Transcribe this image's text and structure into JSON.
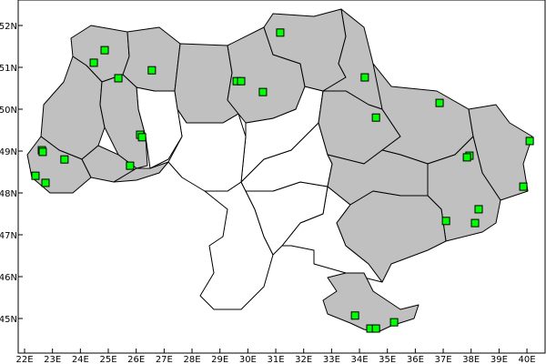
{
  "map": {
    "colors": {
      "shaded_region": "#c0c0c0",
      "unshaded_region": "#ffffff",
      "marker": "#00ff00",
      "border": "#000000"
    },
    "x_axis": {
      "ticks": [
        22,
        23,
        24,
        25,
        26,
        27,
        28,
        29,
        30,
        31,
        32,
        33,
        34,
        35,
        36,
        37,
        38,
        39,
        40
      ],
      "labels": [
        "22E",
        "23E",
        "24E",
        "25E",
        "26E",
        "27E",
        "28E",
        "29E",
        "30E",
        "31E",
        "32E",
        "33E",
        "34E",
        "35E",
        "36E",
        "37E",
        "38E",
        "39E",
        "40E"
      ]
    },
    "y_axis": {
      "ticks": [
        52,
        51,
        50,
        49,
        48,
        47,
        46,
        45
      ],
      "labels": [
        "52N",
        "51N",
        "50N",
        "49N",
        "48N",
        "47N",
        "46N",
        "45N"
      ]
    },
    "markers": [
      {
        "lon": 24.87,
        "lat": 51.41
      },
      {
        "lon": 24.48,
        "lat": 51.11
      },
      {
        "lon": 25.36,
        "lat": 50.74
      },
      {
        "lon": 26.56,
        "lat": 50.93
      },
      {
        "lon": 31.16,
        "lat": 51.83
      },
      {
        "lon": 29.6,
        "lat": 50.67
      },
      {
        "lon": 29.76,
        "lat": 50.67
      },
      {
        "lon": 30.54,
        "lat": 50.41
      },
      {
        "lon": 34.19,
        "lat": 50.76
      },
      {
        "lon": 34.59,
        "lat": 49.8
      },
      {
        "lon": 36.87,
        "lat": 50.15
      },
      {
        "lon": 26.14,
        "lat": 49.39
      },
      {
        "lon": 26.21,
        "lat": 49.33
      },
      {
        "lon": 22.62,
        "lat": 49.02
      },
      {
        "lon": 22.65,
        "lat": 48.98
      },
      {
        "lon": 23.43,
        "lat": 48.8
      },
      {
        "lon": 25.78,
        "lat": 48.65
      },
      {
        "lon": 22.39,
        "lat": 48.41
      },
      {
        "lon": 22.75,
        "lat": 48.24
      },
      {
        "lon": 37.94,
        "lat": 48.89
      },
      {
        "lon": 37.85,
        "lat": 48.85
      },
      {
        "lon": 40.1,
        "lat": 49.24
      },
      {
        "lon": 39.87,
        "lat": 48.15
      },
      {
        "lon": 38.27,
        "lat": 47.61
      },
      {
        "lon": 37.1,
        "lat": 47.33
      },
      {
        "lon": 38.14,
        "lat": 47.28
      },
      {
        "lon": 33.84,
        "lat": 45.07
      },
      {
        "lon": 34.39,
        "lat": 44.76
      },
      {
        "lon": 34.59,
        "lat": 44.76
      },
      {
        "lon": 35.24,
        "lat": 44.91
      }
    ]
  }
}
